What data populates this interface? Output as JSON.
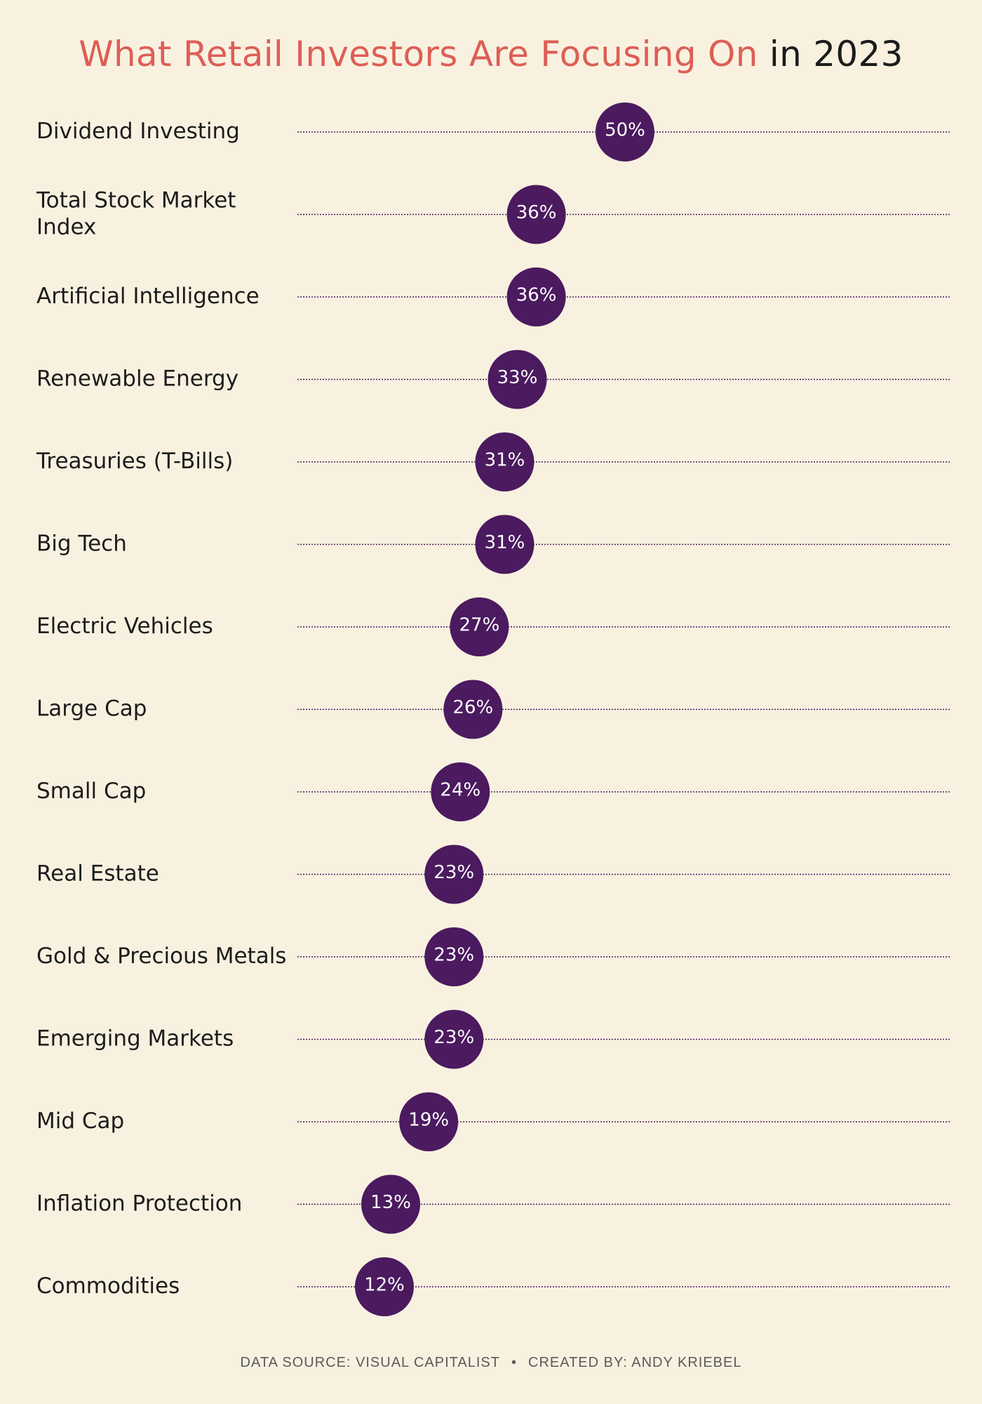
{
  "title": {
    "accent": "What Retail Investors Are Focusing On",
    "rest": "in 2023"
  },
  "colors": {
    "accent": "#dd5e56",
    "dot": "#4b1a5f",
    "background": "#f9f1e0"
  },
  "chart_data": {
    "type": "scatter",
    "title": "What Retail Investors Are Focusing On in 2023",
    "xlabel": "",
    "ylabel": "",
    "xlim": [
      0,
      100
    ],
    "grid": false,
    "categories": [
      [
        "Dividend Investing"
      ],
      [
        "Total Stock Market",
        "Index"
      ],
      [
        "Artificial Intelligence"
      ],
      [
        "Renewable Energy"
      ],
      [
        "Treasuries (T-Bills)"
      ],
      [
        "Big Tech"
      ],
      [
        "Electric Vehicles"
      ],
      [
        "Large Cap"
      ],
      [
        "Small Cap"
      ],
      [
        "Real Estate"
      ],
      [
        "Gold & Precious Metals"
      ],
      [
        "Emerging Markets"
      ],
      [
        "Mid Cap"
      ],
      [
        "Inflation Protection"
      ],
      [
        "Commodities"
      ]
    ],
    "values": [
      50,
      36,
      36,
      33,
      31,
      31,
      27,
      26,
      24,
      23,
      23,
      23,
      19,
      13,
      12
    ],
    "value_labels": [
      "50%",
      "36%",
      "36%",
      "33%",
      "31%",
      "31%",
      "27%",
      "26%",
      "24%",
      "23%",
      "23%",
      "23%",
      "19%",
      "13%",
      "12%"
    ]
  },
  "footer": {
    "source": "DATA SOURCE: VISUAL CAPITALIST",
    "separator": "•",
    "credit": "CREATED BY: ANDY KRIEBEL"
  }
}
